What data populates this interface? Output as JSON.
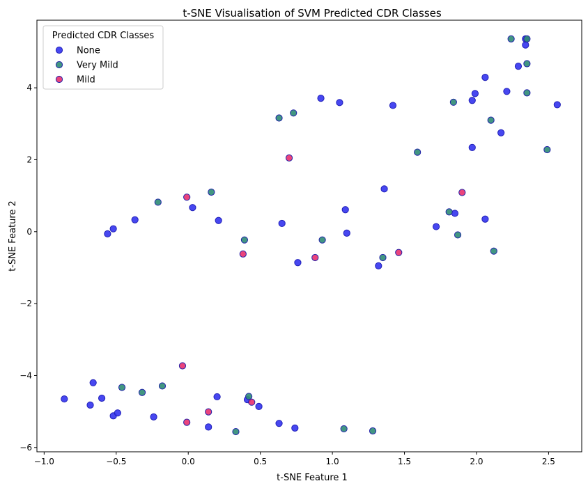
{
  "chart_data": {
    "type": "scatter",
    "title": "t-SNE Visualisation of SVM Predicted CDR Classes",
    "xlabel": "t-SNE Feature 1",
    "ylabel": "t-SNE Feature 2",
    "xlim": [
      -1.05,
      2.73
    ],
    "ylim": [
      -6.12,
      5.88
    ],
    "xticks": [
      -1.0,
      -0.5,
      0.0,
      0.5,
      1.0,
      1.5,
      2.0,
      2.5
    ],
    "xtick_labels": [
      "−1.0",
      "−0.5",
      "0.0",
      "0.5",
      "1.0",
      "1.5",
      "2.0",
      "2.5"
    ],
    "yticks": [
      -6,
      -4,
      -2,
      0,
      2,
      4
    ],
    "ytick_labels": [
      "−6",
      "−4",
      "−2",
      "0",
      "2",
      "4"
    ],
    "grid": false,
    "legend": {
      "title": "Predicted CDR Classes",
      "position": "top-left"
    },
    "series": [
      {
        "name": "None",
        "fill": "#3333ee",
        "edge": "#2020b8",
        "points": [
          [
            -0.86,
            -4.65
          ],
          [
            -0.66,
            -4.2
          ],
          [
            -0.68,
            -4.82
          ],
          [
            -0.6,
            -4.63
          ],
          [
            -0.52,
            -5.12
          ],
          [
            -0.49,
            -5.04
          ],
          [
            -0.24,
            -5.15
          ],
          [
            0.14,
            -5.43
          ],
          [
            0.2,
            -4.59
          ],
          [
            0.41,
            -4.67
          ],
          [
            0.49,
            -4.86
          ],
          [
            0.63,
            -5.33
          ],
          [
            0.74,
            -5.46
          ],
          [
            -0.56,
            -0.06
          ],
          [
            -0.52,
            0.08
          ],
          [
            -0.37,
            0.33
          ],
          [
            0.03,
            0.67
          ],
          [
            0.21,
            0.31
          ],
          [
            0.65,
            0.23
          ],
          [
            0.76,
            -0.86
          ],
          [
            1.09,
            0.61
          ],
          [
            1.1,
            -0.04
          ],
          [
            1.32,
            -0.95
          ],
          [
            1.36,
            1.19
          ],
          [
            1.72,
            0.14
          ],
          [
            1.85,
            0.51
          ],
          [
            2.06,
            0.35
          ],
          [
            0.92,
            3.71
          ],
          [
            1.05,
            3.59
          ],
          [
            1.42,
            3.51
          ],
          [
            1.97,
            3.65
          ],
          [
            1.99,
            3.84
          ],
          [
            2.06,
            4.29
          ],
          [
            2.21,
            3.9
          ],
          [
            2.17,
            2.75
          ],
          [
            1.97,
            2.34
          ],
          [
            2.29,
            4.6
          ],
          [
            2.34,
            5.19
          ],
          [
            2.34,
            5.36
          ],
          [
            2.56,
            3.53
          ]
        ]
      },
      {
        "name": "Very Mild",
        "fill": "#2e8b74",
        "edge": "#2222aa",
        "points": [
          [
            -0.46,
            -4.33
          ],
          [
            -0.32,
            -4.47
          ],
          [
            -0.18,
            -4.29
          ],
          [
            0.33,
            -5.56
          ],
          [
            0.42,
            -4.58
          ],
          [
            1.08,
            -5.48
          ],
          [
            1.28,
            -5.54
          ],
          [
            -0.21,
            0.82
          ],
          [
            0.16,
            1.1
          ],
          [
            0.39,
            -0.23
          ],
          [
            0.93,
            -0.23
          ],
          [
            1.35,
            -0.72
          ],
          [
            1.81,
            0.55
          ],
          [
            1.87,
            -0.09
          ],
          [
            2.12,
            -0.54
          ],
          [
            0.63,
            3.16
          ],
          [
            0.73,
            3.3
          ],
          [
            1.59,
            2.21
          ],
          [
            1.84,
            3.6
          ],
          [
            2.1,
            3.1
          ],
          [
            2.24,
            5.36
          ],
          [
            2.35,
            5.36
          ],
          [
            2.35,
            4.67
          ],
          [
            2.35,
            3.86
          ],
          [
            2.49,
            2.28
          ]
        ]
      },
      {
        "name": "Mild",
        "fill": "#e8306e",
        "edge": "#2222aa",
        "points": [
          [
            -0.04,
            -3.73
          ],
          [
            0.14,
            -5.01
          ],
          [
            -0.01,
            -5.3
          ],
          [
            0.44,
            -4.74
          ],
          [
            -0.01,
            0.96
          ],
          [
            0.38,
            -0.62
          ],
          [
            0.88,
            -0.72
          ],
          [
            1.46,
            -0.58
          ],
          [
            1.9,
            1.09
          ],
          [
            0.7,
            2.05
          ]
        ]
      }
    ]
  }
}
